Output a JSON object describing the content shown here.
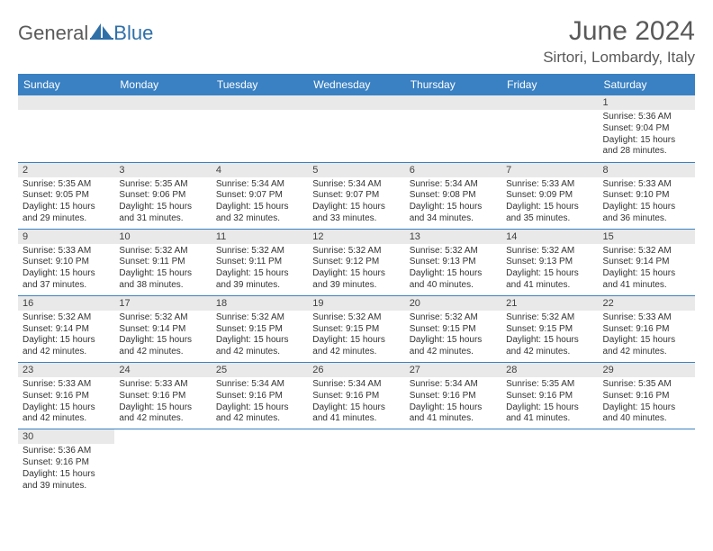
{
  "logo": {
    "word1": "General",
    "word2": "Blue"
  },
  "title": "June 2024",
  "subtitle": "Sirtori, Lombardy, Italy",
  "colors": {
    "header_bg": "#3a81c3",
    "header_fg": "#ffffff",
    "daynum_bg": "#e9e9e9",
    "cell_border": "#3a81c3",
    "title_color": "#595959",
    "logo_gray": "#5a5a5a",
    "logo_blue": "#2f6fa8"
  },
  "day_headers": [
    "Sunday",
    "Monday",
    "Tuesday",
    "Wednesday",
    "Thursday",
    "Friday",
    "Saturday"
  ],
  "weeks": [
    [
      null,
      null,
      null,
      null,
      null,
      null,
      {
        "n": "1",
        "sr": "5:36 AM",
        "ss": "9:04 PM",
        "dh": "15",
        "dm": "28"
      }
    ],
    [
      {
        "n": "2",
        "sr": "5:35 AM",
        "ss": "9:05 PM",
        "dh": "15",
        "dm": "29"
      },
      {
        "n": "3",
        "sr": "5:35 AM",
        "ss": "9:06 PM",
        "dh": "15",
        "dm": "31"
      },
      {
        "n": "4",
        "sr": "5:34 AM",
        "ss": "9:07 PM",
        "dh": "15",
        "dm": "32"
      },
      {
        "n": "5",
        "sr": "5:34 AM",
        "ss": "9:07 PM",
        "dh": "15",
        "dm": "33"
      },
      {
        "n": "6",
        "sr": "5:34 AM",
        "ss": "9:08 PM",
        "dh": "15",
        "dm": "34"
      },
      {
        "n": "7",
        "sr": "5:33 AM",
        "ss": "9:09 PM",
        "dh": "15",
        "dm": "35"
      },
      {
        "n": "8",
        "sr": "5:33 AM",
        "ss": "9:10 PM",
        "dh": "15",
        "dm": "36"
      }
    ],
    [
      {
        "n": "9",
        "sr": "5:33 AM",
        "ss": "9:10 PM",
        "dh": "15",
        "dm": "37"
      },
      {
        "n": "10",
        "sr": "5:32 AM",
        "ss": "9:11 PM",
        "dh": "15",
        "dm": "38"
      },
      {
        "n": "11",
        "sr": "5:32 AM",
        "ss": "9:11 PM",
        "dh": "15",
        "dm": "39"
      },
      {
        "n": "12",
        "sr": "5:32 AM",
        "ss": "9:12 PM",
        "dh": "15",
        "dm": "39"
      },
      {
        "n": "13",
        "sr": "5:32 AM",
        "ss": "9:13 PM",
        "dh": "15",
        "dm": "40"
      },
      {
        "n": "14",
        "sr": "5:32 AM",
        "ss": "9:13 PM",
        "dh": "15",
        "dm": "41"
      },
      {
        "n": "15",
        "sr": "5:32 AM",
        "ss": "9:14 PM",
        "dh": "15",
        "dm": "41"
      }
    ],
    [
      {
        "n": "16",
        "sr": "5:32 AM",
        "ss": "9:14 PM",
        "dh": "15",
        "dm": "42"
      },
      {
        "n": "17",
        "sr": "5:32 AM",
        "ss": "9:14 PM",
        "dh": "15",
        "dm": "42"
      },
      {
        "n": "18",
        "sr": "5:32 AM",
        "ss": "9:15 PM",
        "dh": "15",
        "dm": "42"
      },
      {
        "n": "19",
        "sr": "5:32 AM",
        "ss": "9:15 PM",
        "dh": "15",
        "dm": "42"
      },
      {
        "n": "20",
        "sr": "5:32 AM",
        "ss": "9:15 PM",
        "dh": "15",
        "dm": "42"
      },
      {
        "n": "21",
        "sr": "5:32 AM",
        "ss": "9:15 PM",
        "dh": "15",
        "dm": "42"
      },
      {
        "n": "22",
        "sr": "5:33 AM",
        "ss": "9:16 PM",
        "dh": "15",
        "dm": "42"
      }
    ],
    [
      {
        "n": "23",
        "sr": "5:33 AM",
        "ss": "9:16 PM",
        "dh": "15",
        "dm": "42"
      },
      {
        "n": "24",
        "sr": "5:33 AM",
        "ss": "9:16 PM",
        "dh": "15",
        "dm": "42"
      },
      {
        "n": "25",
        "sr": "5:34 AM",
        "ss": "9:16 PM",
        "dh": "15",
        "dm": "42"
      },
      {
        "n": "26",
        "sr": "5:34 AM",
        "ss": "9:16 PM",
        "dh": "15",
        "dm": "41"
      },
      {
        "n": "27",
        "sr": "5:34 AM",
        "ss": "9:16 PM",
        "dh": "15",
        "dm": "41"
      },
      {
        "n": "28",
        "sr": "5:35 AM",
        "ss": "9:16 PM",
        "dh": "15",
        "dm": "41"
      },
      {
        "n": "29",
        "sr": "5:35 AM",
        "ss": "9:16 PM",
        "dh": "15",
        "dm": "40"
      }
    ],
    [
      {
        "n": "30",
        "sr": "5:36 AM",
        "ss": "9:16 PM",
        "dh": "15",
        "dm": "39"
      },
      null,
      null,
      null,
      null,
      null,
      null
    ]
  ],
  "labels": {
    "sunrise": "Sunrise:",
    "sunset": "Sunset:",
    "daylight_prefix": "Daylight:",
    "hours_word": "hours",
    "and_word": "and",
    "minutes_word": "minutes."
  }
}
